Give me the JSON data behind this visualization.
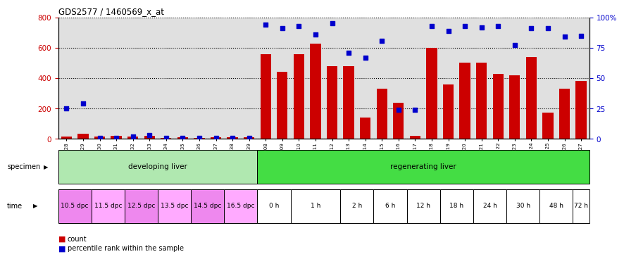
{
  "title": "GDS2577 / 1460569_x_at",
  "samples": [
    "GSM161128",
    "GSM161129",
    "GSM161130",
    "GSM161131",
    "GSM161132",
    "GSM161133",
    "GSM161134",
    "GSM161135",
    "GSM161136",
    "GSM161137",
    "GSM161138",
    "GSM161139",
    "GSM161108",
    "GSM161109",
    "GSM161110",
    "GSM161111",
    "GSM161112",
    "GSM161113",
    "GSM161114",
    "GSM161115",
    "GSM161116",
    "GSM161117",
    "GSM161118",
    "GSM161119",
    "GSM161120",
    "GSM161121",
    "GSM161122",
    "GSM161123",
    "GSM161124",
    "GSM161125",
    "GSM161126",
    "GSM161127"
  ],
  "counts": [
    18,
    35,
    15,
    22,
    18,
    20,
    8,
    10,
    8,
    10,
    10,
    10,
    560,
    440,
    560,
    625,
    480,
    480,
    140,
    330,
    240,
    20,
    600,
    360,
    500,
    500,
    430,
    420,
    540,
    175,
    330,
    380
  ],
  "percentile_vals": [
    25,
    29,
    1,
    1,
    2,
    3,
    1,
    1,
    1,
    1,
    1,
    1,
    94,
    91,
    93,
    86,
    95,
    71,
    67,
    81,
    24,
    24,
    93,
    89,
    93,
    92,
    93,
    77,
    91,
    91,
    84,
    85
  ],
  "bar_color": "#cc0000",
  "dot_color": "#0000cc",
  "ylim_left": [
    0,
    800
  ],
  "ylim_right": [
    0,
    100
  ],
  "yticks_left": [
    0,
    200,
    400,
    600,
    800
  ],
  "yticks_right": [
    0,
    25,
    50,
    75,
    100
  ],
  "ytick_labels_right": [
    "0",
    "25",
    "50",
    "75",
    "100%"
  ],
  "specimen_groups": [
    {
      "label": "developing liver",
      "start": 0,
      "end": 12,
      "color": "#b0e8b0"
    },
    {
      "label": "regenerating liver",
      "start": 12,
      "end": 32,
      "color": "#44dd44"
    }
  ],
  "time_groups": [
    {
      "label": "10.5 dpc",
      "start": 0,
      "end": 2
    },
    {
      "label": "11.5 dpc",
      "start": 2,
      "end": 4
    },
    {
      "label": "12.5 dpc",
      "start": 4,
      "end": 6
    },
    {
      "label": "13.5 dpc",
      "start": 6,
      "end": 8
    },
    {
      "label": "14.5 dpc",
      "start": 8,
      "end": 10
    },
    {
      "label": "16.5 dpc",
      "start": 10,
      "end": 12
    },
    {
      "label": "0 h",
      "start": 12,
      "end": 14
    },
    {
      "label": "1 h",
      "start": 14,
      "end": 17
    },
    {
      "label": "2 h",
      "start": 17,
      "end": 19
    },
    {
      "label": "6 h",
      "start": 19,
      "end": 21
    },
    {
      "label": "12 h",
      "start": 21,
      "end": 23
    },
    {
      "label": "18 h",
      "start": 23,
      "end": 25
    },
    {
      "label": "24 h",
      "start": 25,
      "end": 27
    },
    {
      "label": "30 h",
      "start": 27,
      "end": 29
    },
    {
      "label": "48 h",
      "start": 29,
      "end": 31
    },
    {
      "label": "72 h",
      "start": 31,
      "end": 32
    }
  ],
  "time_colors": [
    "#ee88ee",
    "#ffaaff",
    "#ee88ee",
    "#ffaaff",
    "#ee88ee",
    "#ffaaff",
    "#ffffff",
    "#ffffff",
    "#ffffff",
    "#ffffff",
    "#ffffff",
    "#ffffff",
    "#ffffff",
    "#ffffff",
    "#ffffff",
    "#ffffff"
  ],
  "background_color": "#ffffff",
  "plot_bg_color": "#e0e0e0",
  "grid_color": "#000000",
  "n_samples": 32
}
